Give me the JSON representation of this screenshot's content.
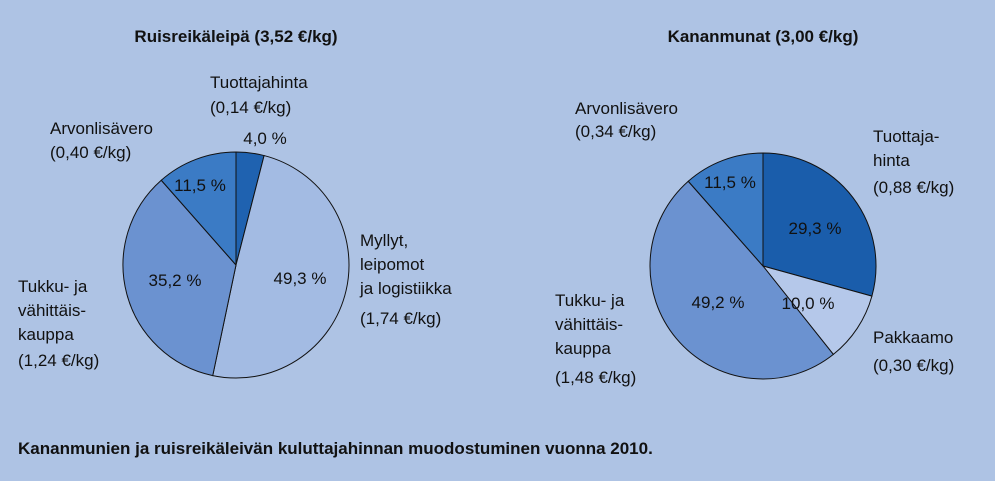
{
  "chart_data": [
    {
      "type": "pie",
      "title": "Ruisreikäleipä (3,52 €/kg)",
      "categories": [
        "Tuottajahinta",
        "Myllyt,\nleipomot\nja logistiikka",
        "Tukku- ja\nvähittäis-\nkauppa",
        "Arvonlisävero"
      ],
      "amount_labels": [
        "(0,14 €/kg)",
        "(1,74 €/kg)",
        "(1,24 €/kg)",
        "(0,40 €/kg)"
      ],
      "values": [
        4.0,
        49.3,
        35.2,
        11.5
      ],
      "value_labels": [
        "4,0 %",
        "49,3 %",
        "35,2 %",
        "11,5 %"
      ],
      "colors": [
        "#1f62b0",
        "#a3bbe3",
        "#6b92d0",
        "#3b7bc5"
      ]
    },
    {
      "type": "pie",
      "title": "Kananmunat (3,00 €/kg)",
      "categories": [
        "Tuottaja-\nhinta",
        "Pakkaamo",
        "Tukku- ja\nvähittäis-\nkauppa",
        "Arvonlisävero"
      ],
      "amount_labels": [
        "(0,88 €/kg)",
        "(0,30 €/kg)",
        "(1,48 €/kg)",
        "(0,34 €/kg)"
      ],
      "values": [
        29.3,
        10.0,
        49.2,
        11.5
      ],
      "value_labels": [
        "29,3 %",
        "10,0 %",
        "49,2 %",
        "11,5 %"
      ],
      "colors": [
        "#1a5dab",
        "#b5c8ea",
        "#6b92d0",
        "#3b7bc5"
      ]
    }
  ],
  "caption": "Kananmunien ja ruisreikäleivän kuluttajahinnan muodostuminen vuonna 2010."
}
